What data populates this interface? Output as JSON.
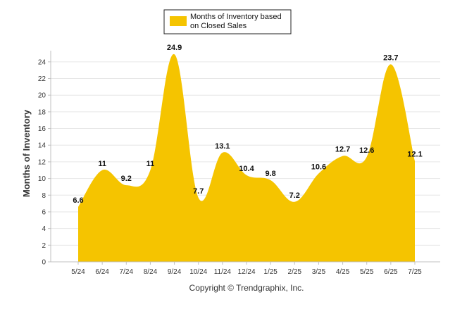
{
  "chart_data": {
    "type": "area",
    "title": "",
    "xlabel": "",
    "ylabel": "Months of Inventory",
    "categories": [
      "5/24",
      "6/24",
      "7/24",
      "8/24",
      "9/24",
      "10/24",
      "11/24",
      "12/24",
      "1/25",
      "2/25",
      "3/25",
      "4/25",
      "5/25",
      "6/25",
      "7/25"
    ],
    "series": [
      {
        "name": "Months of Inventory based on Closed Sales",
        "values": [
          6.6,
          11,
          9.2,
          11,
          24.9,
          7.7,
          13.1,
          10.4,
          9.8,
          7.2,
          10.6,
          12.7,
          12.6,
          23.7,
          12.1
        ],
        "data_labels": [
          "6.6",
          "11",
          "9.2",
          "11",
          "24.9",
          "7.7",
          "13.1",
          "10.4",
          "9.8",
          "7.2",
          "10.6",
          "12.7",
          "12.6",
          "23.7",
          "12.1"
        ]
      }
    ],
    "ylim": [
      0,
      25
    ],
    "yticks": [
      "0",
      "2",
      "4",
      "6",
      "8",
      "10",
      "12",
      "14",
      "16",
      "18",
      "20",
      "22",
      "24"
    ],
    "grid": true,
    "legend_position": "top-center",
    "colors": {
      "fill": "#F5C400",
      "grid": "#E6E6E6",
      "axis": "#C0C0C0"
    }
  },
  "legend": {
    "line1": "Months of Inventory based",
    "line2": "on Closed Sales"
  },
  "credit": "Copyright © Trendgraphix, Inc."
}
